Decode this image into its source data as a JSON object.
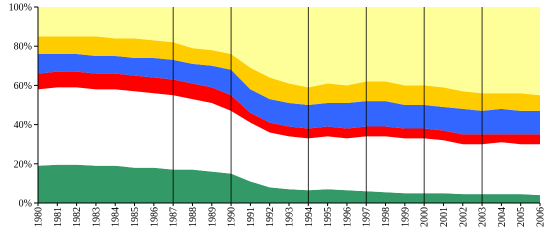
{
  "chart_data": {
    "type": "stacked_area",
    "categories": [
      "1980",
      "1981",
      "1982",
      "1983",
      "1984",
      "1985",
      "1986",
      "1987",
      "1988",
      "1989",
      "1990",
      "1991",
      "1992",
      "1993",
      "1994",
      "1995",
      "1996",
      "1997",
      "1998",
      "1999",
      "2000",
      "2001",
      "2002",
      "2003",
      "2004",
      "2005",
      "2006"
    ],
    "series": [
      {
        "color": "#339966",
        "values": [
          19,
          19.5,
          19.5,
          19,
          19,
          18,
          18,
          17,
          17,
          16,
          15,
          11,
          8,
          7,
          6.5,
          7,
          6.5,
          6,
          5.5,
          5,
          5,
          5,
          4.5,
          4.5,
          4.5,
          4.5,
          4
        ]
      },
      {
        "color": "#ffffff",
        "values": [
          39,
          39.5,
          39.5,
          39,
          39,
          39,
          38,
          38,
          36,
          35,
          32,
          30,
          28,
          27,
          26.5,
          27,
          26.5,
          28,
          28.5,
          28,
          28,
          27,
          25.5,
          25.5,
          26.5,
          25.5,
          26
        ]
      },
      {
        "color": "#ff0000",
        "values": [
          8,
          8,
          8,
          8,
          8,
          8,
          8,
          8,
          8,
          8,
          8,
          5,
          5,
          5,
          5,
          5,
          5,
          5,
          5,
          5,
          5,
          5,
          5,
          5,
          4,
          5,
          5
        ]
      },
      {
        "color": "#3366ff",
        "values": [
          10,
          9,
          9,
          9,
          9,
          9,
          10,
          10,
          10,
          11,
          13,
          12,
          12,
          12,
          12,
          12,
          13,
          13,
          13,
          12,
          12,
          12,
          13,
          12,
          13,
          12,
          12
        ]
      },
      {
        "color": "#ffcc00",
        "values": [
          9,
          9,
          9,
          10,
          9,
          10,
          9,
          9,
          8,
          8,
          8,
          11,
          11,
          10,
          9,
          10,
          9,
          10,
          10,
          10,
          10,
          10,
          9,
          9,
          8,
          9,
          8
        ]
      },
      {
        "color": "#ffff99",
        "values": [
          15,
          15,
          15,
          15,
          16,
          16,
          17,
          18,
          21,
          22,
          24,
          31,
          36,
          39,
          41,
          39,
          40,
          38,
          38,
          40,
          40,
          41,
          43,
          44,
          44,
          44,
          45
        ]
      }
    ],
    "ylim": [
      0,
      100
    ],
    "yticks": [
      {
        "value": 0,
        "label": "0%"
      },
      {
        "value": 20,
        "label": "20%"
      },
      {
        "value": 40,
        "label": "40%"
      },
      {
        "value": 60,
        "label": "60%"
      },
      {
        "value": 80,
        "label": "80%"
      },
      {
        "value": 100,
        "label": "100%"
      }
    ],
    "vlines": [
      "1987",
      "1990",
      "1994",
      "1997",
      "2000",
      "2003"
    ],
    "grid": false
  }
}
